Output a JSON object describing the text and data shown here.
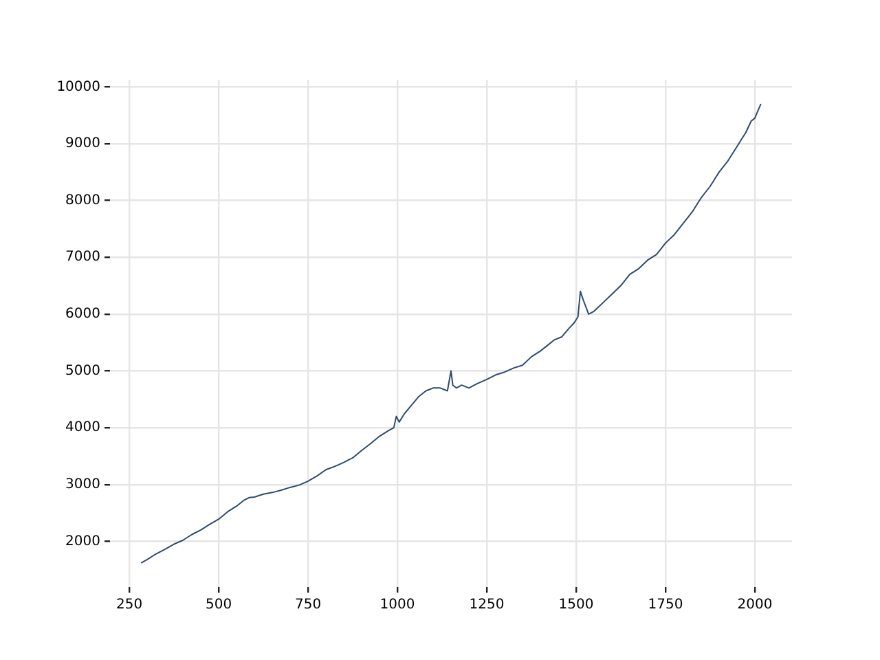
{
  "chart_data": {
    "type": "line",
    "x": [
      283,
      300,
      320,
      350,
      375,
      400,
      425,
      450,
      475,
      500,
      525,
      550,
      570,
      585,
      600,
      625,
      650,
      675,
      700,
      725,
      750,
      775,
      800,
      825,
      850,
      875,
      900,
      925,
      950,
      975,
      990,
      997,
      1005,
      1020,
      1040,
      1060,
      1080,
      1100,
      1120,
      1140,
      1150,
      1155,
      1165,
      1180,
      1200,
      1225,
      1250,
      1275,
      1300,
      1325,
      1350,
      1375,
      1400,
      1420,
      1440,
      1460,
      1480,
      1495,
      1505,
      1512,
      1520,
      1535,
      1550,
      1575,
      1600,
      1625,
      1650,
      1675,
      1700,
      1725,
      1750,
      1775,
      1800,
      1825,
      1850,
      1875,
      1900,
      1925,
      1950,
      1975,
      1990,
      2000,
      2010,
      2017
    ],
    "series": [
      {
        "color": "#2e4a6e",
        "values": [
          1620,
          1680,
          1760,
          1860,
          1950,
          2020,
          2120,
          2200,
          2300,
          2390,
          2520,
          2620,
          2720,
          2770,
          2780,
          2830,
          2860,
          2900,
          2950,
          2990,
          3060,
          3150,
          3260,
          3320,
          3390,
          3470,
          3600,
          3720,
          3850,
          3950,
          4000,
          4200,
          4100,
          4250,
          4400,
          4550,
          4650,
          4700,
          4700,
          4650,
          5000,
          4750,
          4700,
          4750,
          4700,
          4780,
          4850,
          4930,
          4980,
          5050,
          5100,
          5250,
          5350,
          5450,
          5550,
          5600,
          5750,
          5850,
          5950,
          6400,
          6250,
          6000,
          6050,
          6200,
          6350,
          6500,
          6700,
          6800,
          6950,
          7050,
          7250,
          7400,
          7600,
          7800,
          8050,
          8250,
          8500,
          8700,
          8950,
          9200,
          9400,
          9450,
          9600,
          9700
        ]
      }
    ],
    "xlim": [
      196,
      2104
    ],
    "xticks": [
      250,
      500,
      750,
      1000,
      1250,
      1500,
      1750,
      2000
    ],
    "ylim": [
      1194,
      10126
    ],
    "yticks": [
      2000,
      3000,
      4000,
      5000,
      6000,
      7000,
      8000,
      9000,
      10000
    ],
    "grid": true,
    "legend": false,
    "marker": "none",
    "line_style": "solid"
  }
}
